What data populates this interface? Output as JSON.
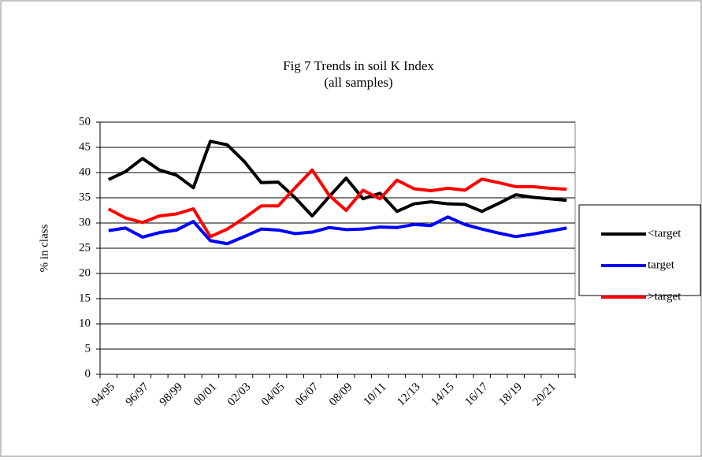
{
  "chart_data": {
    "type": "line",
    "title": "Fig 7 Trends in soil K Index",
    "subtitle": "(all samples)",
    "y_label": "% in class",
    "categories": [
      "94/95",
      null,
      "96/97",
      null,
      "98/99",
      null,
      "00/01",
      null,
      "02/03",
      null,
      "04/05",
      null,
      "06/07",
      null,
      "08/09",
      null,
      "10/11",
      null,
      "12/13",
      null,
      "14/15",
      null,
      "16/17",
      null,
      "18/19",
      null,
      "20/21",
      null
    ],
    "series": [
      {
        "name": "<target",
        "color": "#000000",
        "values": [
          38.6,
          40.2,
          42.8,
          40.5,
          39.5,
          37.0,
          46.2,
          45.5,
          42.2,
          38.0,
          38.1,
          35.0,
          31.4,
          35.2,
          38.9,
          34.8,
          35.9,
          32.3,
          33.8,
          34.2,
          33.8,
          33.7,
          32.3,
          33.9,
          35.6,
          35.1,
          34.8,
          34.5
        ]
      },
      {
        "name": "target",
        "color": "#0000ff",
        "values": [
          28.5,
          29.0,
          27.2,
          28.1,
          28.6,
          30.3,
          26.5,
          25.9,
          27.3,
          28.8,
          28.6,
          27.9,
          28.2,
          29.1,
          28.7,
          28.8,
          29.2,
          29.1,
          29.7,
          29.5,
          31.2,
          29.7,
          28.8,
          28.0,
          27.3,
          27.8,
          28.4,
          29.0
        ]
      },
      {
        "name": ">target",
        "color": "#ff0000",
        "values": [
          32.8,
          31.0,
          30.1,
          31.4,
          31.8,
          32.8,
          27.3,
          28.8,
          31.0,
          33.4,
          33.4,
          37.0,
          40.5,
          35.5,
          32.5,
          36.5,
          34.8,
          38.5,
          36.8,
          36.4,
          36.9,
          36.5,
          38.7,
          38.0,
          37.2,
          37.2,
          36.9,
          36.7
        ]
      }
    ],
    "ylim": [
      0,
      50
    ],
    "yticks": [
      0,
      5,
      10,
      15,
      20,
      25,
      30,
      35,
      40,
      45,
      50
    ],
    "grid": true,
    "legend": "right"
  }
}
